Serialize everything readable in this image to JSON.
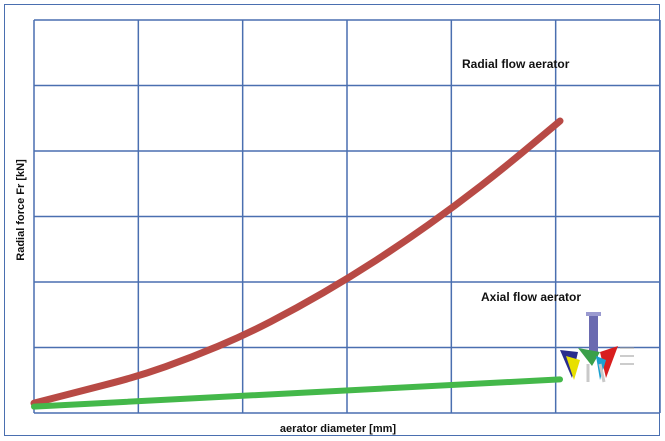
{
  "chart_data": {
    "type": "line",
    "title": "",
    "xlabel": "aerator diameter [mm]",
    "ylabel": "Radial force Fr [kN]",
    "grid": true,
    "xlim": [
      0,
      1
    ],
    "ylim": [
      0,
      1
    ],
    "series": [
      {
        "name": "Radial flow aerator",
        "color": "#b84a45",
        "x": [
          0,
          0.1,
          0.2,
          0.3,
          0.4,
          0.5,
          0.6,
          0.7,
          0.8,
          0.9,
          1.0
        ],
        "y": [
          0.02,
          0.06,
          0.1,
          0.155,
          0.22,
          0.3,
          0.39,
          0.49,
          0.6,
          0.72,
          0.85
        ]
      },
      {
        "name": "Axial flow aerator",
        "color": "#44b84a",
        "x": [
          0,
          1.0
        ],
        "y": [
          0.01,
          0.09
        ]
      }
    ]
  },
  "icons": {
    "axial_aerator": "axial-aerator-icon"
  }
}
